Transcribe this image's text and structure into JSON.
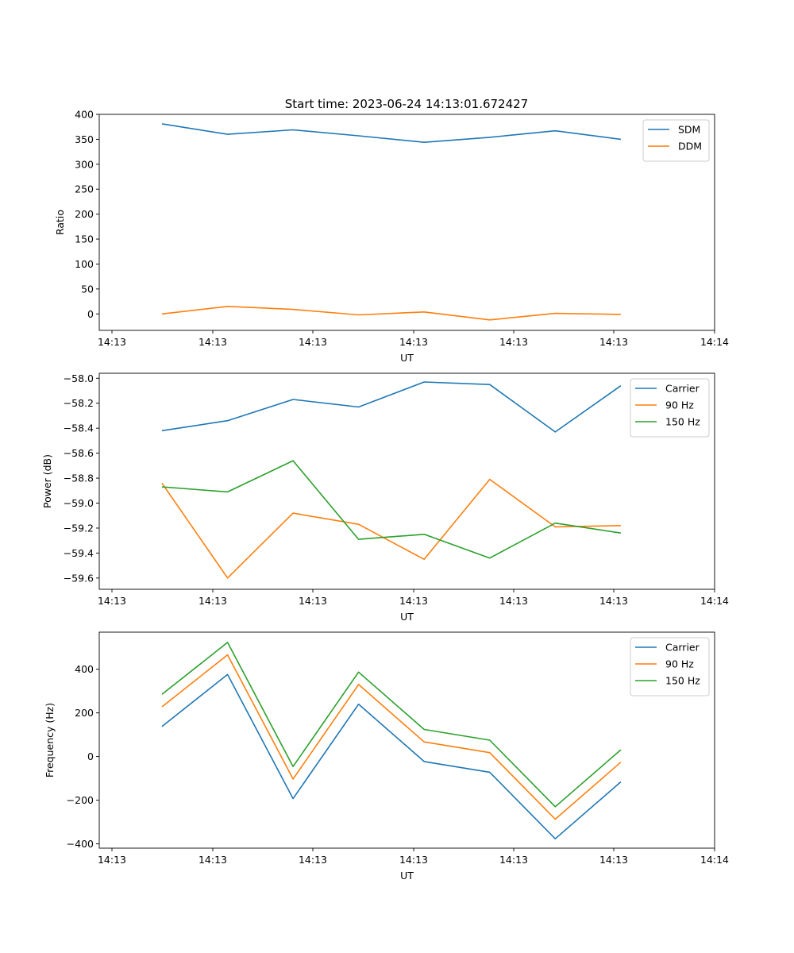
{
  "figure_title": "Start time: 2023-06-24 14:13:01.672427",
  "colors": {
    "blue": "#1f77b4",
    "orange": "#ff7f0e",
    "green": "#2ca02c"
  },
  "chart_data": [
    {
      "type": "line",
      "title": "Start time: 2023-06-24 14:13:01.672427",
      "xlabel": "UT",
      "ylabel": "Ratio",
      "x_tick_labels": [
        "14:13",
        "14:13",
        "14:13",
        "14:13",
        "14:13",
        "14:13",
        "14:14"
      ],
      "y_ticks": [
        0,
        50,
        100,
        150,
        200,
        250,
        300,
        350,
        400
      ],
      "y_tick_labels": [
        "0",
        "50",
        "100",
        "150",
        "200",
        "250",
        "300",
        "350",
        "400"
      ],
      "ylim": [
        -33,
        400
      ],
      "legend": "top-right",
      "series": [
        {
          "name": "SDM",
          "color": "#1f77b4",
          "values": [
            381,
            360,
            369,
            357,
            344,
            354,
            367,
            350
          ]
        },
        {
          "name": "DDM",
          "color": "#ff7f0e",
          "values": [
            0,
            15,
            9,
            -2,
            4,
            -12,
            1,
            -1
          ]
        }
      ]
    },
    {
      "type": "line",
      "title": "",
      "xlabel": "UT",
      "ylabel": "Power (dB)",
      "x_tick_labels": [
        "14:13",
        "14:13",
        "14:13",
        "14:13",
        "14:13",
        "14:13",
        "14:14"
      ],
      "y_ticks": [
        -58.0,
        -58.2,
        -58.4,
        -58.6,
        -58.8,
        -59.0,
        -59.2,
        -59.4,
        -59.6
      ],
      "y_tick_labels": [
        "−58.0",
        "−58.2",
        "−58.4",
        "−58.6",
        "−58.8",
        "−59.0",
        "−59.2",
        "−59.4",
        "−59.6"
      ],
      "ylim": [
        -59.69,
        -57.96
      ],
      "legend": "top-right",
      "series": [
        {
          "name": "Carrier",
          "color": "#1f77b4",
          "values": [
            -58.42,
            -58.34,
            -58.17,
            -58.23,
            -58.03,
            -58.05,
            -58.43,
            -58.06
          ]
        },
        {
          "name": "90 Hz",
          "color": "#ff7f0e",
          "values": [
            -58.84,
            -59.6,
            -59.08,
            -59.17,
            -59.45,
            -58.81,
            -59.19,
            -59.18
          ]
        },
        {
          "name": "150 Hz",
          "color": "#2ca02c",
          "values": [
            -58.87,
            -58.91,
            -58.66,
            -59.29,
            -59.25,
            -59.44,
            -59.16,
            -59.24
          ]
        }
      ]
    },
    {
      "type": "line",
      "title": "",
      "xlabel": "UT",
      "ylabel": "Frequency (Hz)",
      "x_tick_labels": [
        "14:13",
        "14:13",
        "14:13",
        "14:13",
        "14:13",
        "14:13",
        "14:14"
      ],
      "y_ticks": [
        -400,
        -200,
        0,
        200,
        400
      ],
      "y_tick_labels": [
        "−400",
        "−200",
        "0",
        "200",
        "400"
      ],
      "ylim": [
        -420,
        570
      ],
      "legend": "top-right",
      "series": [
        {
          "name": "Carrier",
          "color": "#1f77b4",
          "values": [
            138,
            376,
            -193,
            240,
            -23,
            -72,
            -377,
            -116
          ]
        },
        {
          "name": "90 Hz",
          "color": "#ff7f0e",
          "values": [
            228,
            466,
            -103,
            330,
            67,
            18,
            -287,
            -26
          ]
        },
        {
          "name": "150 Hz",
          "color": "#2ca02c",
          "values": [
            285,
            523,
            -46,
            387,
            124,
            75,
            -230,
            31
          ]
        }
      ]
    }
  ]
}
